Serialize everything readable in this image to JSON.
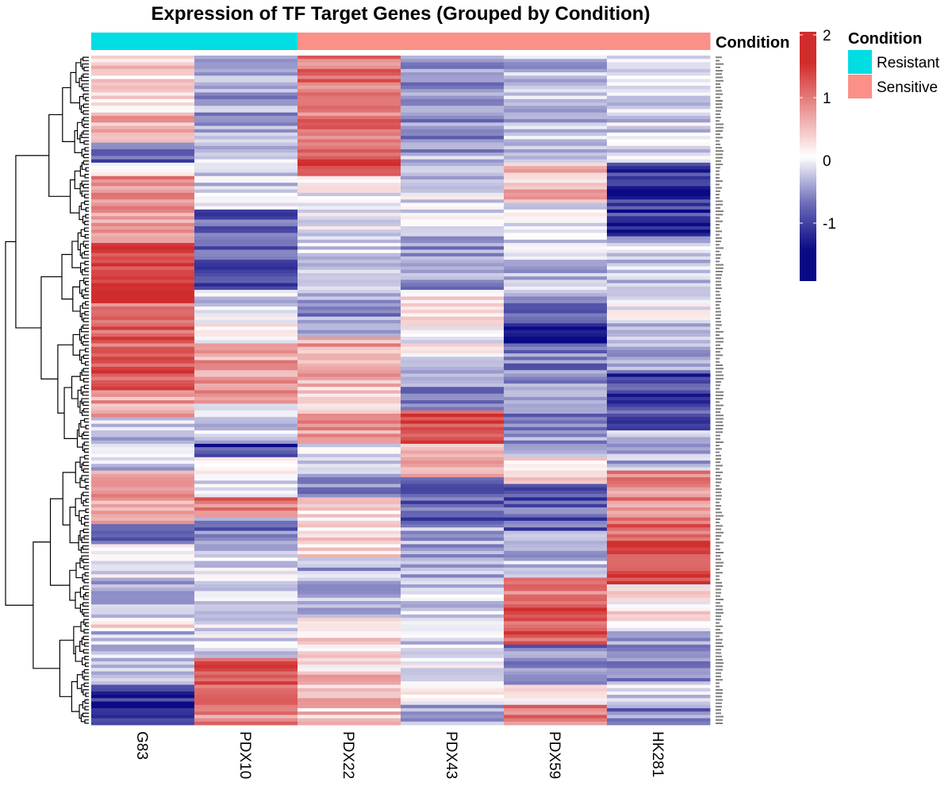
{
  "chart_data": {
    "type": "heatmap",
    "title": "Expression of TF Target Genes (Grouped by Condition)",
    "columns": [
      "G83",
      "PDX10",
      "PDX22",
      "PDX43",
      "PDX59",
      "HK281"
    ],
    "row_count": 200,
    "row_dendrogram": true,
    "column_annotation": {
      "label": "Condition",
      "values": [
        "Resistant",
        "Resistant",
        "Sensitive",
        "Sensitive",
        "Sensitive",
        "Sensitive"
      ]
    },
    "legend": {
      "title": "Condition",
      "entries": [
        {
          "label": "Resistant",
          "color": "#00DDE3"
        },
        {
          "label": "Sensitive",
          "color": "#FA9088"
        }
      ],
      "placement": "right"
    },
    "color_scale": {
      "min": -2,
      "max": 2,
      "ticks": [
        2,
        1,
        0,
        -1
      ],
      "tick_labels": [
        "2",
        "1",
        "0",
        "-1"
      ],
      "colors": [
        "#0A0A85",
        "#FFFFFF",
        "#D12C2C"
      ]
    },
    "pattern_segments": {
      "G83": [
        [
          0,
          0.3
        ],
        [
          0.09,
          0.7
        ],
        [
          0.13,
          -1.2
        ],
        [
          0.16,
          0.2
        ],
        [
          0.18,
          0.9
        ],
        [
          0.28,
          1.8
        ],
        [
          0.37,
          1.3
        ],
        [
          0.42,
          1.4
        ],
        [
          0.5,
          0.8
        ],
        [
          0.54,
          -0.4
        ],
        [
          0.62,
          0.8
        ],
        [
          0.7,
          -1.0
        ],
        [
          0.73,
          -0.2
        ],
        [
          0.78,
          -0.5
        ],
        [
          0.84,
          0.2
        ],
        [
          0.86,
          -0.5
        ],
        [
          0.94,
          -1.5
        ]
      ],
      "PDX10": [
        [
          0,
          -0.7
        ],
        [
          0.15,
          -0.3
        ],
        [
          0.23,
          -1.2
        ],
        [
          0.35,
          -0.3
        ],
        [
          0.39,
          0.1
        ],
        [
          0.43,
          0.8
        ],
        [
          0.52,
          -0.3
        ],
        [
          0.58,
          -1.5
        ],
        [
          0.6,
          -0.2
        ],
        [
          0.66,
          1.2
        ],
        [
          0.69,
          -1.0
        ],
        [
          0.74,
          -0.2
        ],
        [
          0.9,
          1.5
        ],
        [
          0.98,
          1.0
        ]
      ],
      "PDX22": [
        [
          0,
          1.2
        ],
        [
          0.15,
          1.5
        ],
        [
          0.18,
          -0.1
        ],
        [
          0.27,
          -0.4
        ],
        [
          0.33,
          -0.6
        ],
        [
          0.37,
          -0.8
        ],
        [
          0.42,
          0.8
        ],
        [
          0.49,
          0.6
        ],
        [
          0.54,
          0.9
        ],
        [
          0.58,
          -0.3
        ],
        [
          0.63,
          -0.9
        ],
        [
          0.66,
          0.3
        ],
        [
          0.75,
          -0.6
        ],
        [
          0.84,
          0.3
        ],
        [
          0.92,
          0.5
        ]
      ],
      "PDX43": [
        [
          0,
          -0.9
        ],
        [
          0.15,
          -0.4
        ],
        [
          0.2,
          -0.2
        ],
        [
          0.27,
          -0.8
        ],
        [
          0.35,
          0.3
        ],
        [
          0.4,
          0.0
        ],
        [
          0.45,
          -0.8
        ],
        [
          0.53,
          1.6
        ],
        [
          0.58,
          0.8
        ],
        [
          0.63,
          -1.2
        ],
        [
          0.7,
          -0.6
        ],
        [
          0.78,
          -0.3
        ],
        [
          0.88,
          0.0
        ],
        [
          0.97,
          -0.6
        ]
      ],
      "PDX59": [
        [
          0,
          -0.5
        ],
        [
          0.16,
          0.6
        ],
        [
          0.22,
          -0.2
        ],
        [
          0.3,
          -0.5
        ],
        [
          0.37,
          -1.0
        ],
        [
          0.4,
          -1.8
        ],
        [
          0.43,
          -0.9
        ],
        [
          0.55,
          -0.8
        ],
        [
          0.6,
          0.2
        ],
        [
          0.64,
          -1.2
        ],
        [
          0.71,
          -0.5
        ],
        [
          0.78,
          1.2
        ],
        [
          0.82,
          1.5
        ],
        [
          0.88,
          -0.9
        ],
        [
          0.94,
          0.2
        ],
        [
          0.97,
          1.1
        ]
      ],
      "HK281": [
        [
          0,
          -0.3
        ],
        [
          0.16,
          -1.5
        ],
        [
          0.27,
          -0.4
        ],
        [
          0.34,
          -0.2
        ],
        [
          0.4,
          -0.6
        ],
        [
          0.47,
          -1.4
        ],
        [
          0.56,
          -0.6
        ],
        [
          0.62,
          1.0
        ],
        [
          0.7,
          1.4
        ],
        [
          0.74,
          1.7
        ],
        [
          0.79,
          0.2
        ],
        [
          0.86,
          -0.8
        ],
        [
          0.94,
          -0.2
        ],
        [
          0.97,
          -0.9
        ]
      ]
    }
  }
}
